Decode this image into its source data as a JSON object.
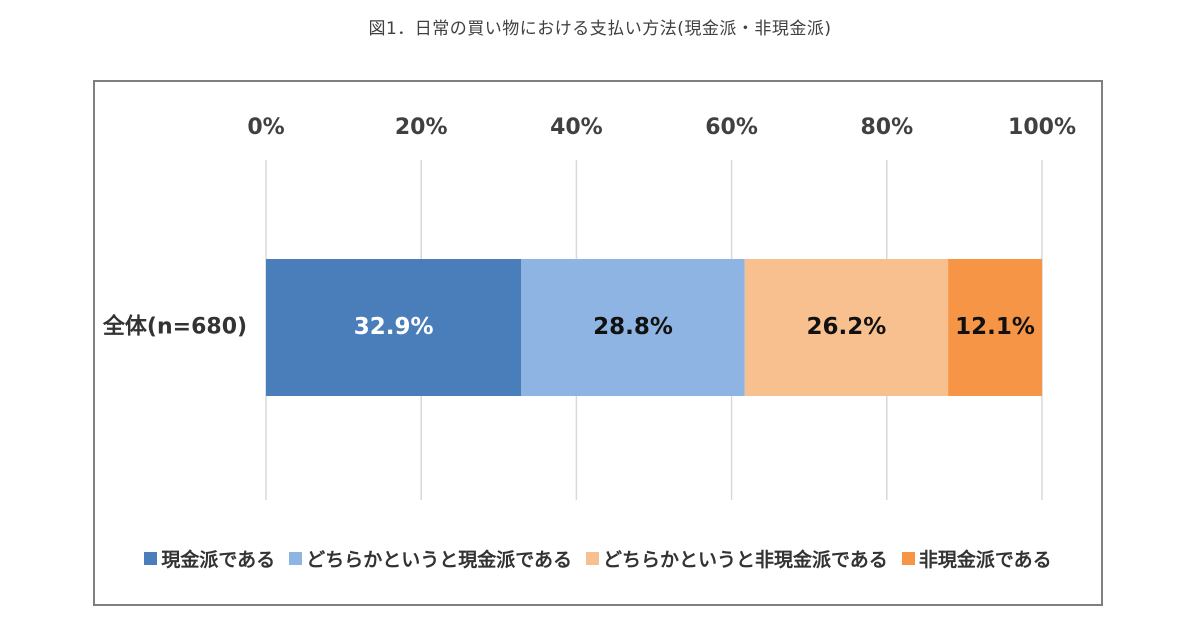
{
  "chart_data": {
    "type": "bar",
    "orientation": "horizontal",
    "stacked": true,
    "title": "図1．日常の買い物における支払い方法(現金派・非現金派)",
    "categories": [
      "全体(n=680)"
    ],
    "series": [
      {
        "name": "現金派である",
        "values": [
          32.9
        ],
        "label": "32.9%",
        "color": "#4a7ebb",
        "label_color": "#ffffff"
      },
      {
        "name": "どちらかというと現金派である",
        "values": [
          28.8
        ],
        "label": "28.8%",
        "color": "#8eb4e3",
        "label_color": "#111111"
      },
      {
        "name": "どちらかというと非現金派である",
        "values": [
          26.2
        ],
        "label": "26.2%",
        "color": "#f8c08f",
        "label_color": "#111111"
      },
      {
        "name": "非現金派である",
        "values": [
          12.1
        ],
        "label": "12.1%",
        "color": "#f59545",
        "label_color": "#111111"
      }
    ],
    "xlim": [
      0,
      100
    ],
    "x_ticks": [
      0,
      20,
      40,
      60,
      80,
      100
    ],
    "x_tick_labels": [
      "0%",
      "20%",
      "40%",
      "60%",
      "80%",
      "100%"
    ],
    "x_axis_position": "top",
    "grid": true,
    "legend_position": "bottom"
  }
}
